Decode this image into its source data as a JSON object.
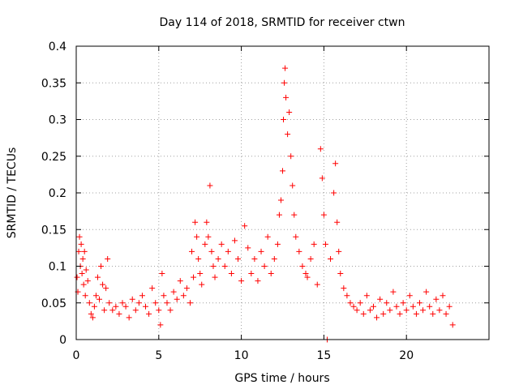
{
  "chart_data": {
    "type": "scatter",
    "title": "Day 114 of 2018, SRMTID for receiver ctwn",
    "xlabel": "GPS time / hours",
    "ylabel": "SRMTID / TECUs",
    "xlim": [
      0,
      25
    ],
    "ylim": [
      0,
      0.4
    ],
    "grid": true,
    "marker": "+",
    "color": "#ff0000",
    "x_ticks": [
      0,
      5,
      10,
      15,
      20
    ],
    "x_tick_labels": [
      "0",
      "5",
      "10",
      "15",
      "20"
    ],
    "y_ticks": [
      0,
      0.05,
      0.1,
      0.15,
      0.2,
      0.25,
      0.3,
      0.35,
      0.4
    ],
    "y_tick_labels": [
      "0",
      "0.05",
      "0.1",
      "0.15",
      "0.2",
      "0.25",
      "0.3",
      "0.35",
      "0.4"
    ],
    "series": [
      {
        "name": "SRMTID",
        "points": [
          [
            0.05,
            0.085
          ],
          [
            0.1,
            0.065
          ],
          [
            0.15,
            0.12
          ],
          [
            0.2,
            0.14
          ],
          [
            0.25,
            0.1
          ],
          [
            0.3,
            0.13
          ],
          [
            0.35,
            0.09
          ],
          [
            0.4,
            0.11
          ],
          [
            0.45,
            0.075
          ],
          [
            0.5,
            0.12
          ],
          [
            0.55,
            0.06
          ],
          [
            0.6,
            0.095
          ],
          [
            0.7,
            0.08
          ],
          [
            0.8,
            0.05
          ],
          [
            0.9,
            0.035
          ],
          [
            1.0,
            0.03
          ],
          [
            1.1,
            0.045
          ],
          [
            1.2,
            0.06
          ],
          [
            1.3,
            0.085
          ],
          [
            1.4,
            0.055
          ],
          [
            1.5,
            0.1
          ],
          [
            1.6,
            0.075
          ],
          [
            1.7,
            0.04
          ],
          [
            1.8,
            0.07
          ],
          [
            1.9,
            0.11
          ],
          [
            2.0,
            0.05
          ],
          [
            2.2,
            0.04
          ],
          [
            2.4,
            0.045
          ],
          [
            2.6,
            0.035
          ],
          [
            2.8,
            0.05
          ],
          [
            3.0,
            0.045
          ],
          [
            3.2,
            0.03
          ],
          [
            3.4,
            0.055
          ],
          [
            3.6,
            0.04
          ],
          [
            3.8,
            0.05
          ],
          [
            4.0,
            0.06
          ],
          [
            4.2,
            0.045
          ],
          [
            4.4,
            0.035
          ],
          [
            4.6,
            0.07
          ],
          [
            4.8,
            0.05
          ],
          [
            5.0,
            0.04
          ],
          [
            5.1,
            0.02
          ],
          [
            5.2,
            0.09
          ],
          [
            5.3,
            0.06
          ],
          [
            5.5,
            0.05
          ],
          [
            5.7,
            0.04
          ],
          [
            5.9,
            0.065
          ],
          [
            6.1,
            0.055
          ],
          [
            6.3,
            0.08
          ],
          [
            6.5,
            0.06
          ],
          [
            6.7,
            0.07
          ],
          [
            6.9,
            0.05
          ],
          [
            7.0,
            0.12
          ],
          [
            7.1,
            0.085
          ],
          [
            7.2,
            0.16
          ],
          [
            7.3,
            0.14
          ],
          [
            7.4,
            0.11
          ],
          [
            7.5,
            0.09
          ],
          [
            7.6,
            0.075
          ],
          [
            7.8,
            0.13
          ],
          [
            7.9,
            0.16
          ],
          [
            8.0,
            0.14
          ],
          [
            8.1,
            0.21
          ],
          [
            8.2,
            0.12
          ],
          [
            8.3,
            0.1
          ],
          [
            8.4,
            0.085
          ],
          [
            8.6,
            0.11
          ],
          [
            8.8,
            0.13
          ],
          [
            9.0,
            0.1
          ],
          [
            9.2,
            0.12
          ],
          [
            9.4,
            0.09
          ],
          [
            9.6,
            0.135
          ],
          [
            9.8,
            0.11
          ],
          [
            10.0,
            0.08
          ],
          [
            10.2,
            0.155
          ],
          [
            10.4,
            0.125
          ],
          [
            10.6,
            0.09
          ],
          [
            10.8,
            0.11
          ],
          [
            11.0,
            0.08
          ],
          [
            11.2,
            0.12
          ],
          [
            11.4,
            0.1
          ],
          [
            11.6,
            0.14
          ],
          [
            11.8,
            0.09
          ],
          [
            12.0,
            0.11
          ],
          [
            12.2,
            0.13
          ],
          [
            12.3,
            0.17
          ],
          [
            12.4,
            0.19
          ],
          [
            12.5,
            0.23
          ],
          [
            12.55,
            0.3
          ],
          [
            12.6,
            0.35
          ],
          [
            12.65,
            0.37
          ],
          [
            12.7,
            0.33
          ],
          [
            12.8,
            0.28
          ],
          [
            12.9,
            0.31
          ],
          [
            13.0,
            0.25
          ],
          [
            13.1,
            0.21
          ],
          [
            13.2,
            0.17
          ],
          [
            13.3,
            0.14
          ],
          [
            13.5,
            0.12
          ],
          [
            13.7,
            0.1
          ],
          [
            13.9,
            0.09
          ],
          [
            14.0,
            0.085
          ],
          [
            14.2,
            0.11
          ],
          [
            14.4,
            0.13
          ],
          [
            14.6,
            0.075
          ],
          [
            14.8,
            0.26
          ],
          [
            14.9,
            0.22
          ],
          [
            15.0,
            0.17
          ],
          [
            15.1,
            0.13
          ],
          [
            15.2,
            0.0
          ],
          [
            15.4,
            0.11
          ],
          [
            15.6,
            0.2
          ],
          [
            15.7,
            0.24
          ],
          [
            15.8,
            0.16
          ],
          [
            15.9,
            0.12
          ],
          [
            16.0,
            0.09
          ],
          [
            16.2,
            0.07
          ],
          [
            16.4,
            0.06
          ],
          [
            16.6,
            0.05
          ],
          [
            16.8,
            0.045
          ],
          [
            17.0,
            0.04
          ],
          [
            17.2,
            0.05
          ],
          [
            17.4,
            0.035
          ],
          [
            17.6,
            0.06
          ],
          [
            17.8,
            0.04
          ],
          [
            18.0,
            0.045
          ],
          [
            18.2,
            0.03
          ],
          [
            18.4,
            0.055
          ],
          [
            18.6,
            0.035
          ],
          [
            18.8,
            0.05
          ],
          [
            19.0,
            0.04
          ],
          [
            19.2,
            0.065
          ],
          [
            19.4,
            0.045
          ],
          [
            19.6,
            0.035
          ],
          [
            19.8,
            0.05
          ],
          [
            20.0,
            0.04
          ],
          [
            20.2,
            0.06
          ],
          [
            20.4,
            0.045
          ],
          [
            20.6,
            0.035
          ],
          [
            20.8,
            0.05
          ],
          [
            21.0,
            0.04
          ],
          [
            21.2,
            0.065
          ],
          [
            21.4,
            0.045
          ],
          [
            21.6,
            0.035
          ],
          [
            21.8,
            0.055
          ],
          [
            22.0,
            0.04
          ],
          [
            22.2,
            0.06
          ],
          [
            22.4,
            0.035
          ],
          [
            22.6,
            0.045
          ],
          [
            22.8,
            0.02
          ]
        ]
      }
    ]
  }
}
